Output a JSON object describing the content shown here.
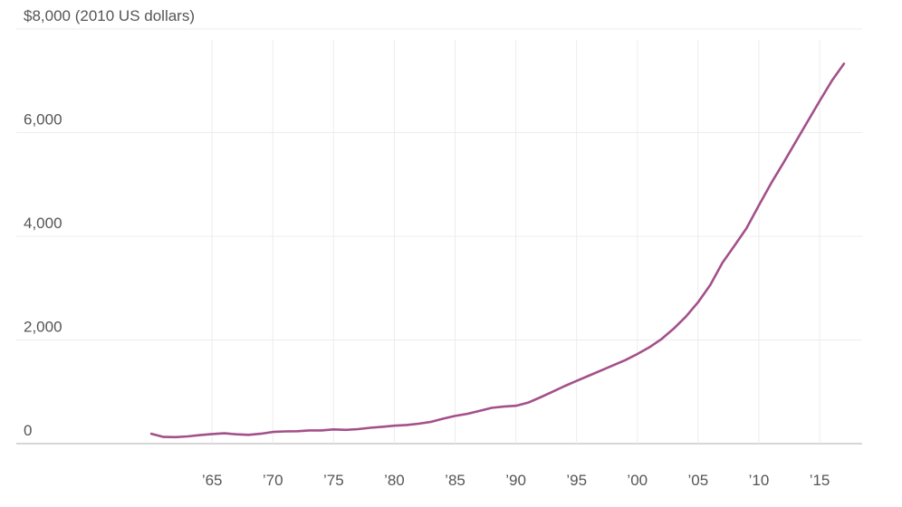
{
  "chart_data": {
    "type": "line",
    "title": "",
    "xlabel": "",
    "ylabel": "",
    "y_top_label": "$8,000 (2010 US dollars)",
    "y_ticks": [
      {
        "value": 0,
        "label": "0"
      },
      {
        "value": 2000,
        "label": "2,000"
      },
      {
        "value": 4000,
        "label": "4,000"
      },
      {
        "value": 6000,
        "label": "6,000"
      },
      {
        "value": 8000,
        "label": "$8,000 (2010 US dollars)"
      }
    ],
    "x_ticks": [
      {
        "value": 1965,
        "label": "’65"
      },
      {
        "value": 1970,
        "label": "’70"
      },
      {
        "value": 1975,
        "label": "’75"
      },
      {
        "value": 1980,
        "label": "’80"
      },
      {
        "value": 1985,
        "label": "’85"
      },
      {
        "value": 1990,
        "label": "’90"
      },
      {
        "value": 1995,
        "label": "’95"
      },
      {
        "value": 2000,
        "label": "’00"
      },
      {
        "value": 2005,
        "label": "’05"
      },
      {
        "value": 2010,
        "label": "’10"
      },
      {
        "value": 2015,
        "label": "’15"
      }
    ],
    "xlim": [
      1955,
      2018.5
    ],
    "ylim": [
      0,
      8000
    ],
    "grid": true,
    "series": [
      {
        "color": "#a3508a",
        "x": [
          1960,
          1961,
          1962,
          1963,
          1964,
          1965,
          1966,
          1967,
          1968,
          1969,
          1970,
          1971,
          1972,
          1973,
          1974,
          1975,
          1976,
          1977,
          1978,
          1979,
          1980,
          1981,
          1982,
          1983,
          1984,
          1985,
          1986,
          1987,
          1988,
          1989,
          1990,
          1991,
          1992,
          1993,
          1994,
          1995,
          1996,
          1997,
          1998,
          1999,
          2000,
          2001,
          2002,
          2003,
          2004,
          2005,
          2006,
          2007,
          2008,
          2009,
          2010,
          2011,
          2012,
          2013,
          2014,
          2015,
          2016,
          2017
        ],
        "values": [
          190,
          130,
          125,
          140,
          165,
          185,
          200,
          180,
          170,
          190,
          225,
          235,
          240,
          255,
          255,
          275,
          265,
          280,
          305,
          325,
          345,
          360,
          385,
          420,
          480,
          535,
          575,
          630,
          690,
          715,
          730,
          790,
          890,
          1000,
          1110,
          1210,
          1310,
          1410,
          1510,
          1610,
          1730,
          1860,
          2020,
          2220,
          2450,
          2730,
          3060,
          3490,
          3820,
          4160,
          4600,
          5020,
          5410,
          5810,
          6210,
          6610,
          7000,
          7330
        ]
      }
    ]
  }
}
